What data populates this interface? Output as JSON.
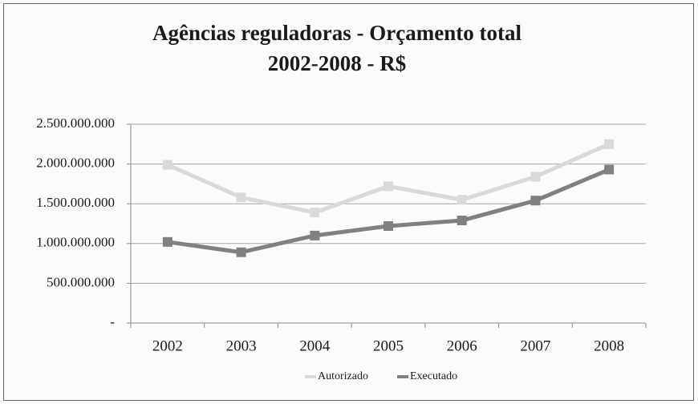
{
  "chart_data": {
    "type": "line",
    "title": "Agências reguladoras - Orçamento total",
    "subtitle": "2002-2008 - R$",
    "categories": [
      "2002",
      "2003",
      "2004",
      "2005",
      "2006",
      "2007",
      "2008"
    ],
    "series": [
      {
        "name": "Autorizado",
        "color": "#d9d9d9",
        "values": [
          1990000000,
          1580000000,
          1390000000,
          1720000000,
          1550000000,
          1840000000,
          2250000000
        ]
      },
      {
        "name": "Executado",
        "color": "#808080",
        "values": [
          1020000000,
          890000000,
          1100000000,
          1220000000,
          1290000000,
          1540000000,
          1930000000
        ]
      }
    ],
    "ylim": [
      0,
      2500000000
    ],
    "yticks": [
      {
        "value": 0,
        "label": "-"
      },
      {
        "value": 500000000,
        "label": "500.000.000"
      },
      {
        "value": 1000000000,
        "label": "1.000.000.000"
      },
      {
        "value": 1500000000,
        "label": "1.500.000.000"
      },
      {
        "value": 2000000000,
        "label": "2.000.000.000"
      },
      {
        "value": 2500000000,
        "label": "2.500.000.000"
      }
    ],
    "grid": true,
    "legend": "bottom"
  }
}
